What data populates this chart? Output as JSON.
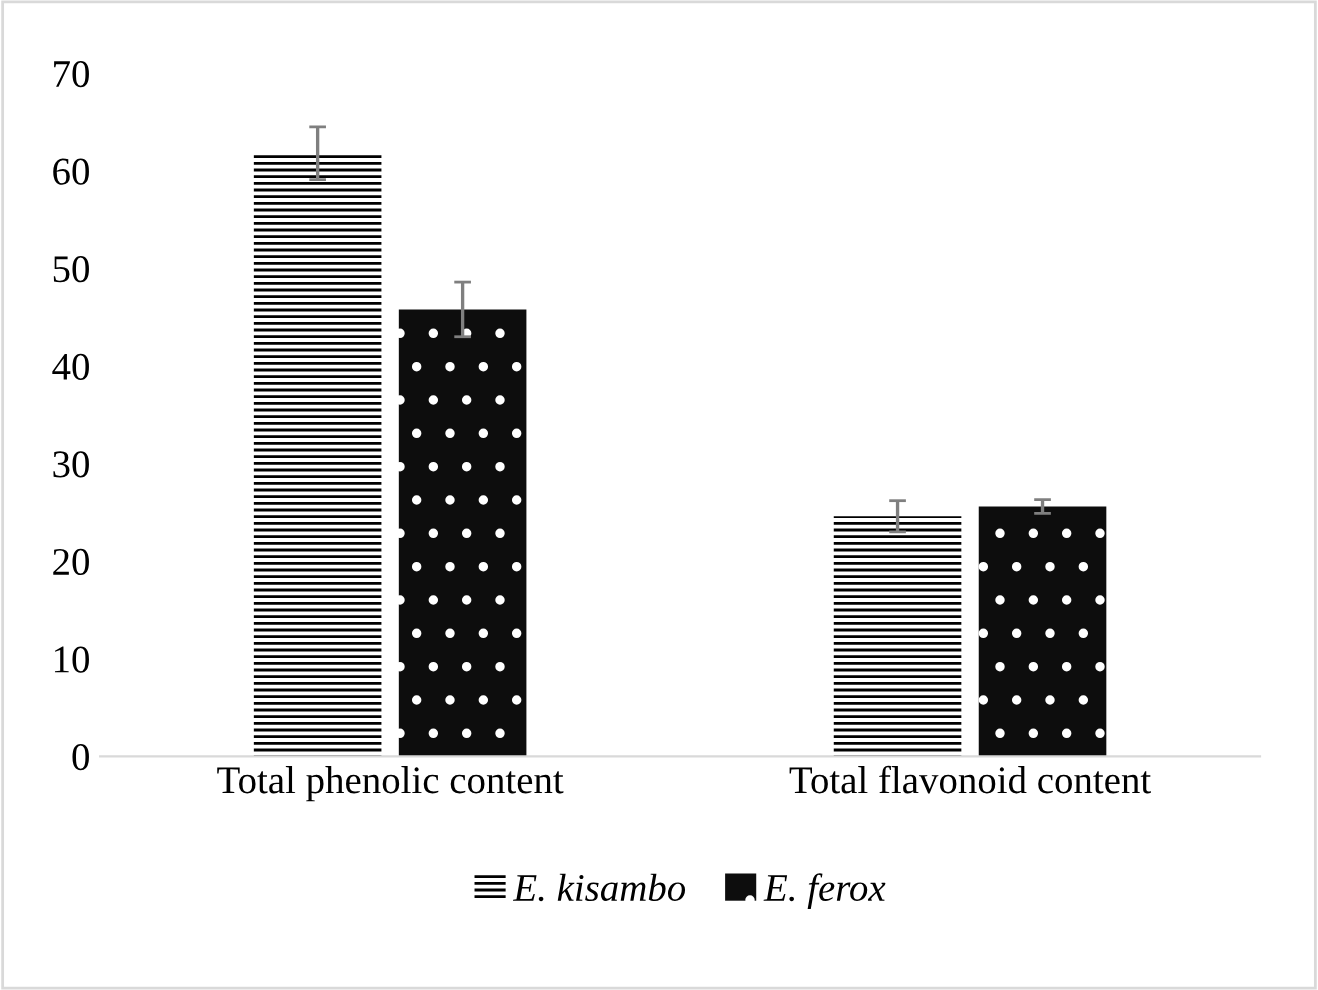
{
  "chart_data": {
    "type": "bar",
    "categories": [
      "Total phenolic content",
      "Total flavonoid content"
    ],
    "series": [
      {
        "name": "E. kisambo",
        "color": "#000000",
        "values": [
          61.8,
          24.6
        ],
        "errors": [
          2.7,
          1.6
        ]
      },
      {
        "name": "E. ferox",
        "color": "#0d0d0d",
        "values": [
          45.8,
          25.6
        ],
        "errors": [
          2.8,
          0.7
        ]
      }
    ],
    "ylim": [
      0,
      70
    ],
    "yticks": [
      0,
      10,
      20,
      30,
      40,
      50,
      60,
      70
    ],
    "grid": false,
    "legend": "bottom"
  }
}
